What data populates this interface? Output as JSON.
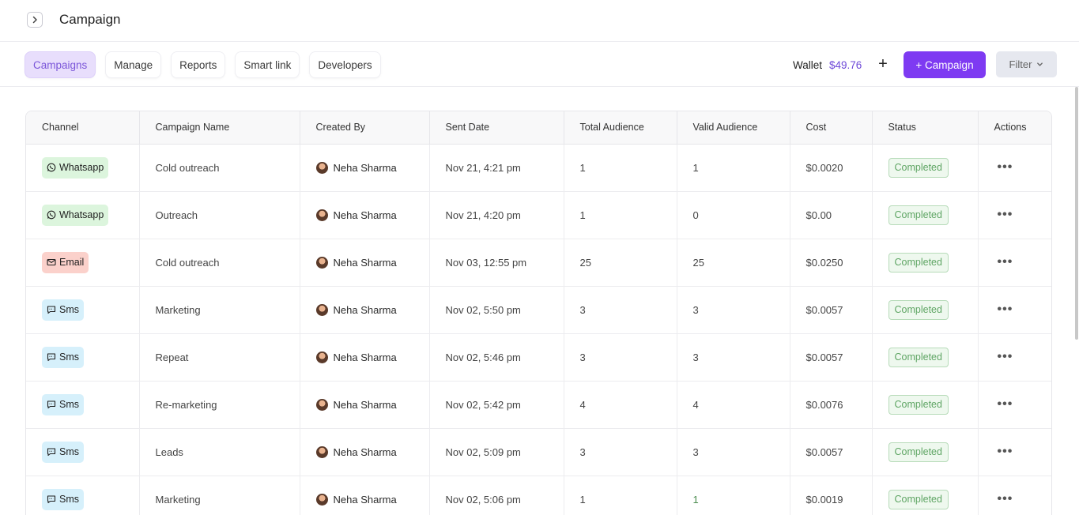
{
  "header": {
    "title": "Campaign"
  },
  "nav": {
    "tabs": [
      {
        "label": "Campaigns",
        "active": true
      },
      {
        "label": "Manage",
        "active": false
      },
      {
        "label": "Reports",
        "active": false
      },
      {
        "label": "Smart link",
        "active": false
      },
      {
        "label": "Developers",
        "active": false
      }
    ],
    "wallet_label": "Wallet",
    "wallet_amount": "$49.76",
    "wallet_add": "+",
    "new_campaign_label": "+ Campaign",
    "filter_label": "Filter"
  },
  "table": {
    "columns": [
      "Channel",
      "Campaign Name",
      "Created By",
      "Sent Date",
      "Total Audience",
      "Valid Audience",
      "Cost",
      "Status",
      "Actions"
    ],
    "rows": [
      {
        "channel": "Whatsapp",
        "channel_type": "whatsapp",
        "name": "Cold outreach",
        "created_by": "Neha Sharma",
        "sent_date": "Nov 21, 4:21 pm",
        "total": "1",
        "valid": "1",
        "cost": "$0.0020",
        "status": "Completed",
        "actions": "•••"
      },
      {
        "channel": "Whatsapp",
        "channel_type": "whatsapp",
        "name": "Outreach",
        "created_by": "Neha Sharma",
        "sent_date": "Nov 21, 4:20 pm",
        "total": "1",
        "valid": "0",
        "cost": "$0.00",
        "status": "Completed",
        "actions": "•••"
      },
      {
        "channel": "Email",
        "channel_type": "email",
        "name": "Cold outreach",
        "created_by": "Neha Sharma",
        "sent_date": "Nov 03, 12:55 pm",
        "total": "25",
        "valid": "25",
        "cost": "$0.0250",
        "status": "Completed",
        "actions": "•••"
      },
      {
        "channel": "Sms",
        "channel_type": "sms",
        "name": "Marketing",
        "created_by": "Neha Sharma",
        "sent_date": "Nov 02, 5:50 pm",
        "total": "3",
        "valid": "3",
        "cost": "$0.0057",
        "status": "Completed",
        "actions": "•••"
      },
      {
        "channel": "Sms",
        "channel_type": "sms",
        "name": "Repeat",
        "created_by": "Neha Sharma",
        "sent_date": "Nov 02, 5:46 pm",
        "total": "3",
        "valid": "3",
        "cost": "$0.0057",
        "status": "Completed",
        "actions": "•••"
      },
      {
        "channel": "Sms",
        "channel_type": "sms",
        "name": "Re-marketing",
        "created_by": "Neha Sharma",
        "sent_date": "Nov 02, 5:42 pm",
        "total": "4",
        "valid": "4",
        "cost": "$0.0076",
        "status": "Completed",
        "actions": "•••"
      },
      {
        "channel": "Sms",
        "channel_type": "sms",
        "name": "Leads",
        "created_by": "Neha Sharma",
        "sent_date": "Nov 02, 5:09 pm",
        "total": "3",
        "valid": "3",
        "cost": "$0.0057",
        "status": "Completed",
        "actions": "•••"
      },
      {
        "channel": "Sms",
        "channel_type": "sms",
        "name": "Marketing",
        "created_by": "Neha Sharma",
        "sent_date": "Nov 02, 5:06 pm",
        "total": "1",
        "valid": "1",
        "cost": "$0.0019",
        "status": "Completed",
        "actions": "•••"
      }
    ]
  },
  "colors": {
    "accent": "#7e3af2",
    "tab_active_bg": "#e8defc",
    "status_green": "#5fa564"
  },
  "icons": {
    "collapse": "chevron-right-icon",
    "whatsapp": "whatsapp-icon",
    "email": "mail-icon",
    "sms": "chat-icon",
    "filter": "chevron-down-icon",
    "actions": "more-horizontal-icon"
  }
}
